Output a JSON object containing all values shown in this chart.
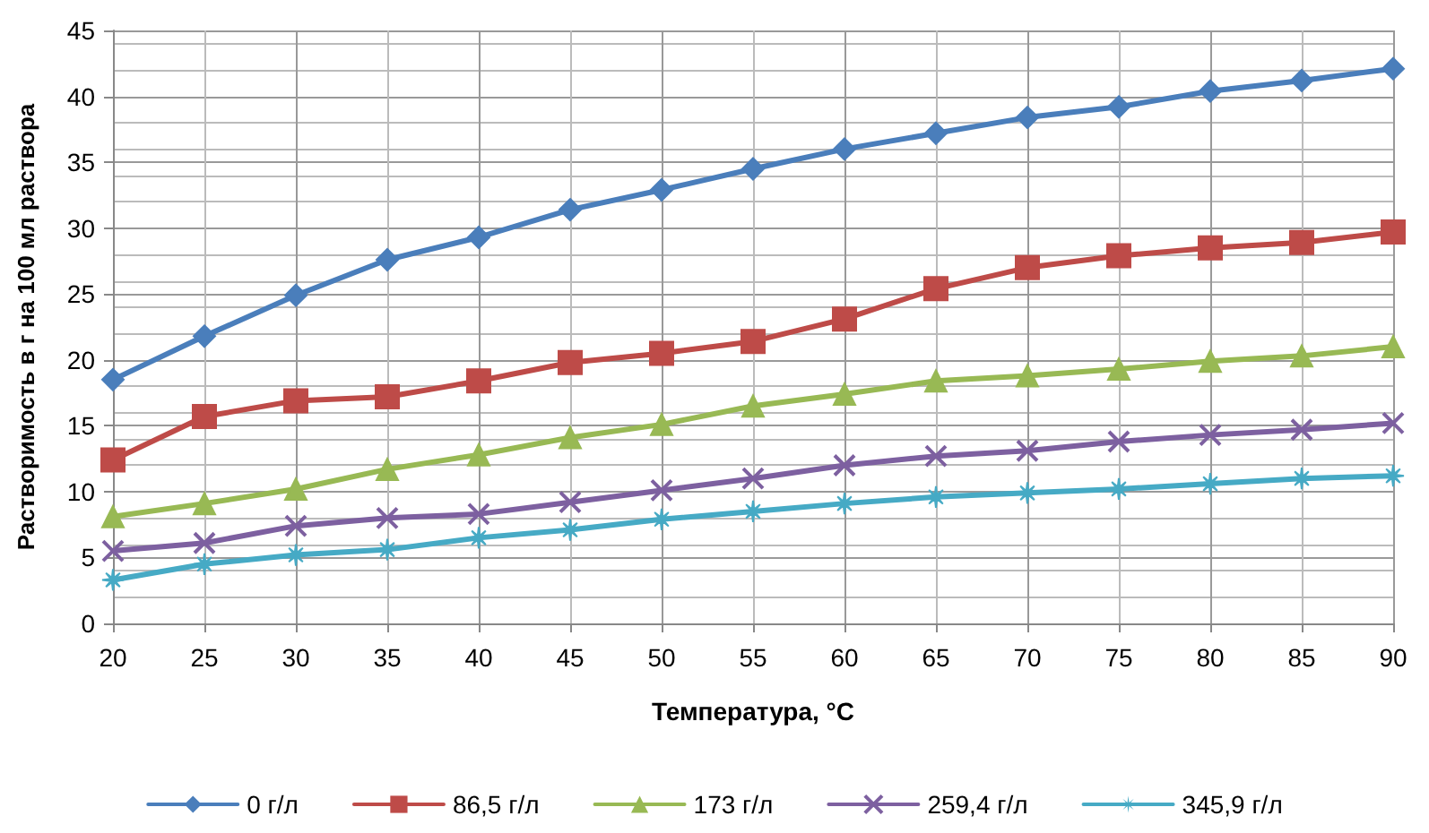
{
  "chart_data": {
    "type": "line",
    "xlabel": "Температура, °C",
    "ylabel": "Растворимость в г на 100 мл раствора",
    "x": [
      20,
      25,
      30,
      35,
      40,
      45,
      50,
      55,
      60,
      65,
      70,
      75,
      80,
      85,
      90
    ],
    "xlim": [
      20,
      90
    ],
    "xticks": [
      20,
      25,
      30,
      35,
      40,
      45,
      50,
      55,
      60,
      65,
      70,
      75,
      80,
      85,
      90
    ],
    "ylim": [
      0,
      45
    ],
    "yticks": [
      0,
      5,
      10,
      15,
      20,
      25,
      30,
      35,
      40,
      45
    ],
    "grid": true,
    "legend": "bottom",
    "series": [
      {
        "name": "0 г/л",
        "color": "#4a7ebb",
        "marker": "diamond",
        "values": [
          18.5,
          21.8,
          24.9,
          27.6,
          29.3,
          31.4,
          32.9,
          34.5,
          36.0,
          37.2,
          38.4,
          39.2,
          40.4,
          41.2,
          42.1
        ]
      },
      {
        "name": "86,5 г/л",
        "color": "#be4b48",
        "marker": "square",
        "values": [
          12.4,
          15.7,
          16.9,
          17.2,
          18.4,
          19.8,
          20.5,
          21.4,
          23.1,
          25.4,
          27.0,
          27.9,
          28.5,
          28.9,
          29.7
        ]
      },
      {
        "name": "173 г/л",
        "color": "#98b954",
        "marker": "triangle",
        "values": [
          8.1,
          9.1,
          10.2,
          11.7,
          12.8,
          14.1,
          15.1,
          16.5,
          17.4,
          18.4,
          18.8,
          19.3,
          19.9,
          20.3,
          21.0
        ]
      },
      {
        "name": "259,4 г/л",
        "color": "#7d60a0",
        "marker": "cross",
        "values": [
          5.5,
          6.1,
          7.4,
          8.0,
          8.3,
          9.2,
          10.1,
          11.0,
          12.0,
          12.7,
          13.1,
          13.8,
          14.3,
          14.7,
          15.2
        ]
      },
      {
        "name": "345,9 г/л",
        "color": "#46aac5",
        "marker": "star",
        "values": [
          3.3,
          4.5,
          5.2,
          5.6,
          6.5,
          7.1,
          7.9,
          8.5,
          9.1,
          9.6,
          9.9,
          10.2,
          10.6,
          11.0,
          11.2
        ]
      }
    ]
  }
}
